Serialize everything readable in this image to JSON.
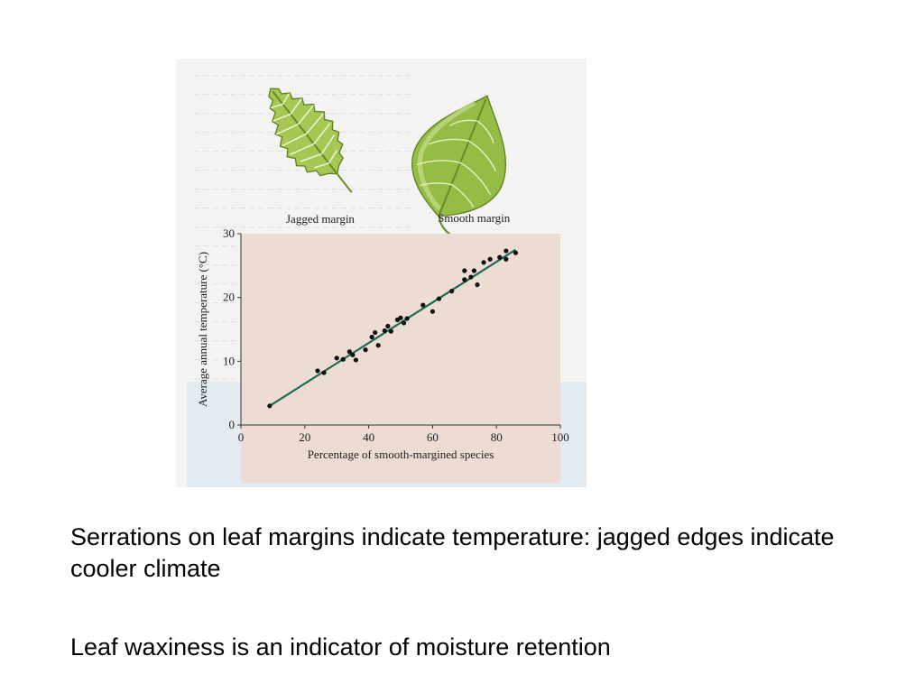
{
  "leaf_labels": {
    "jagged": "Jagged margin",
    "smooth": "Smooth margin"
  },
  "icons": {
    "jagged_leaf": "serrated-leaf-illustration",
    "smooth_leaf": "smooth-leaf-illustration"
  },
  "colors": {
    "plot_background": "#ecdcd3",
    "regression_line": "#1e6b55",
    "points": "#111111",
    "leaf_green": "#9cc04a"
  },
  "chart_data": {
    "type": "scatter",
    "xlabel": "Percentage of smooth-margined species",
    "ylabel": "Average annual temperature (°C)",
    "xlim": [
      0,
      100
    ],
    "ylim": [
      0,
      30
    ],
    "x_ticks": [
      "0",
      "20",
      "40",
      "60",
      "80",
      "100"
    ],
    "y_ticks": [
      "0",
      "10",
      "20",
      "30"
    ],
    "grid": false,
    "points": [
      {
        "x": 9,
        "y": 3
      },
      {
        "x": 24,
        "y": 8.5
      },
      {
        "x": 26,
        "y": 8.2
      },
      {
        "x": 30,
        "y": 10.5
      },
      {
        "x": 32,
        "y": 10.3
      },
      {
        "x": 34,
        "y": 11.5
      },
      {
        "x": 35,
        "y": 11
      },
      {
        "x": 36,
        "y": 10.2
      },
      {
        "x": 39,
        "y": 11.8
      },
      {
        "x": 41,
        "y": 13.8
      },
      {
        "x": 42,
        "y": 14.5
      },
      {
        "x": 43,
        "y": 12.5
      },
      {
        "x": 45,
        "y": 14.8
      },
      {
        "x": 46,
        "y": 15.5
      },
      {
        "x": 47,
        "y": 14.7
      },
      {
        "x": 49,
        "y": 16.5
      },
      {
        "x": 50,
        "y": 16.8
      },
      {
        "x": 51,
        "y": 16
      },
      {
        "x": 52,
        "y": 16.7
      },
      {
        "x": 57,
        "y": 18.8
      },
      {
        "x": 60,
        "y": 17.8
      },
      {
        "x": 62,
        "y": 19.8
      },
      {
        "x": 66,
        "y": 21
      },
      {
        "x": 70,
        "y": 22.8
      },
      {
        "x": 70,
        "y": 24.2
      },
      {
        "x": 72,
        "y": 23.2
      },
      {
        "x": 73,
        "y": 24.2
      },
      {
        "x": 74,
        "y": 22
      },
      {
        "x": 76,
        "y": 25.5
      },
      {
        "x": 78,
        "y": 26
      },
      {
        "x": 81,
        "y": 26.3
      },
      {
        "x": 83,
        "y": 27.3
      },
      {
        "x": 83,
        "y": 26
      },
      {
        "x": 86,
        "y": 27
      }
    ],
    "trendline": {
      "x1": 9,
      "y1": 3,
      "x2": 86,
      "y2": 27.5
    }
  },
  "captions": {
    "line1": "Serrations on leaf margins indicate temperature: jagged edges indicate cooler climate",
    "line2": "Leaf waxiness is an indicator of moisture retention"
  }
}
